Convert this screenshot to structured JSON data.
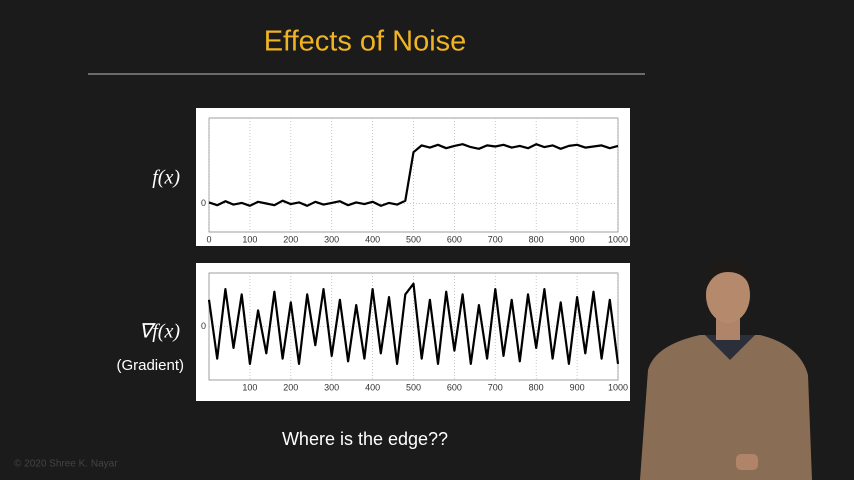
{
  "title": "Effects of Noise",
  "labels": {
    "signal": "f(x)",
    "gradient": "∇f(x)",
    "gradient_note": "(Gradient)"
  },
  "caption": "Where is the edge??",
  "copyright": "© 2020 Shree K. Nayar",
  "chart_data": [
    {
      "type": "line",
      "color": "#000000",
      "grid": true,
      "x": [
        0,
        20,
        40,
        60,
        80,
        100,
        120,
        140,
        160,
        180,
        200,
        220,
        240,
        260,
        280,
        300,
        320,
        340,
        360,
        380,
        400,
        420,
        440,
        460,
        480,
        500,
        520,
        540,
        560,
        580,
        600,
        620,
        640,
        660,
        680,
        700,
        720,
        740,
        760,
        780,
        800,
        820,
        840,
        860,
        880,
        900,
        920,
        940,
        960,
        980,
        1000
      ],
      "values": [
        0.02,
        -0.03,
        0.04,
        -0.02,
        0.01,
        -0.04,
        0.03,
        0,
        -0.03,
        0.05,
        -0.01,
        0.02,
        -0.04,
        0.03,
        -0.02,
        0.01,
        0.04,
        -0.03,
        0.02,
        -0.01,
        0.03,
        -0.04,
        0.01,
        -0.02,
        0.05,
        0.9,
        1.02,
        0.98,
        1.03,
        0.97,
        1.01,
        1.04,
        0.99,
        0.96,
        1.02,
        1.0,
        1.03,
        0.98,
        1.01,
        0.97,
        1.04,
        0.99,
        1.02,
        0.96,
        1.01,
        1.03,
        0.98,
        1.0,
        1.02,
        0.97,
        1.01
      ],
      "xlim": [
        0,
        1000
      ],
      "xticks": [
        0,
        100,
        200,
        300,
        400,
        500,
        600,
        700,
        800,
        900,
        1000
      ],
      "ylim": [
        -0.5,
        1.5
      ],
      "yticks": [
        0
      ]
    },
    {
      "type": "line",
      "color": "#000000",
      "grid": true,
      "x": [
        0,
        20,
        40,
        60,
        80,
        100,
        120,
        140,
        160,
        180,
        200,
        220,
        240,
        260,
        280,
        300,
        320,
        340,
        360,
        380,
        400,
        420,
        440,
        460,
        480,
        500,
        520,
        540,
        560,
        580,
        600,
        620,
        640,
        660,
        680,
        700,
        720,
        740,
        760,
        780,
        800,
        820,
        840,
        860,
        880,
        900,
        920,
        940,
        960,
        980,
        1000
      ],
      "values": [
        0.5,
        -0.6,
        0.7,
        -0.4,
        0.6,
        -0.7,
        0.3,
        -0.5,
        0.65,
        -0.6,
        0.45,
        -0.7,
        0.6,
        -0.35,
        0.7,
        -0.55,
        0.5,
        -0.65,
        0.4,
        -0.6,
        0.7,
        -0.5,
        0.55,
        -0.7,
        0.6,
        0.8,
        -0.6,
        0.5,
        -0.7,
        0.65,
        -0.45,
        0.6,
        -0.7,
        0.4,
        -0.6,
        0.7,
        -0.55,
        0.5,
        -0.65,
        0.6,
        -0.4,
        0.7,
        -0.6,
        0.45,
        -0.7,
        0.55,
        -0.5,
        0.65,
        -0.6,
        0.5,
        -0.7
      ],
      "xlim": [
        0,
        1000
      ],
      "xticks": [
        100,
        200,
        300,
        400,
        500,
        600,
        700,
        800,
        900,
        1000
      ],
      "ylim": [
        -1,
        1
      ],
      "yticks": [
        0
      ]
    }
  ]
}
